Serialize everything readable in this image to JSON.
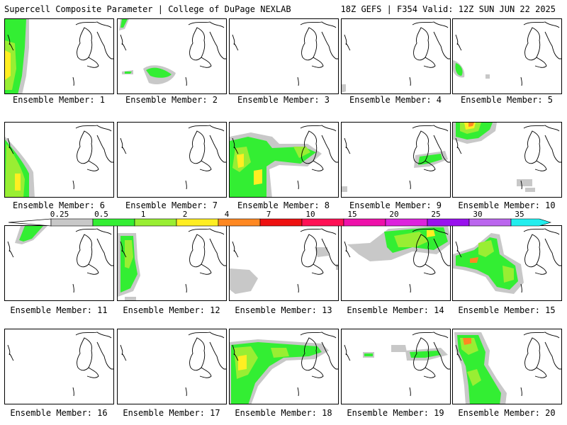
{
  "header": {
    "title_left": "Supercell Composite Parameter | College of DuPage NEXLAB",
    "title_right": "18Z GEFS | F354 Valid: 12Z SUN JUN 22 2025"
  },
  "legend": {
    "levels": [
      "0.25",
      "0.5",
      "1",
      "2",
      "4",
      "7",
      "10",
      "15",
      "20",
      "25",
      "30",
      "35"
    ],
    "colors": [
      "#c8c8c8",
      "#33ee33",
      "#99ee33",
      "#ffee22",
      "#ff8822",
      "#ee1111",
      "#ff1155",
      "#ee11aa",
      "#dd22dd",
      "#9911ee",
      "#bb66ee",
      "#22eeee"
    ]
  },
  "members": [
    {
      "label": "Ensemble Member: 1"
    },
    {
      "label": "Ensemble Member: 2"
    },
    {
      "label": "Ensemble Member: 3"
    },
    {
      "label": "Ensemble Member: 4"
    },
    {
      "label": "Ensemble Member: 5"
    },
    {
      "label": "Ensemble Member: 6"
    },
    {
      "label": "Ensemble Member: 7"
    },
    {
      "label": "Ensemble Member: 8"
    },
    {
      "label": "Ensemble Member: 9"
    },
    {
      "label": "Ensemble Member: 10"
    },
    {
      "label": "Ensemble Member: 11"
    },
    {
      "label": "Ensemble Member: 12"
    },
    {
      "label": "Ensemble Member: 13"
    },
    {
      "label": "Ensemble Member: 14"
    },
    {
      "label": "Ensemble Member: 15"
    },
    {
      "label": "Ensemble Member: 16"
    },
    {
      "label": "Ensemble Member: 17"
    },
    {
      "label": "Ensemble Member: 18"
    },
    {
      "label": "Ensemble Member: 19"
    },
    {
      "label": "Ensemble Member: 20"
    }
  ]
}
